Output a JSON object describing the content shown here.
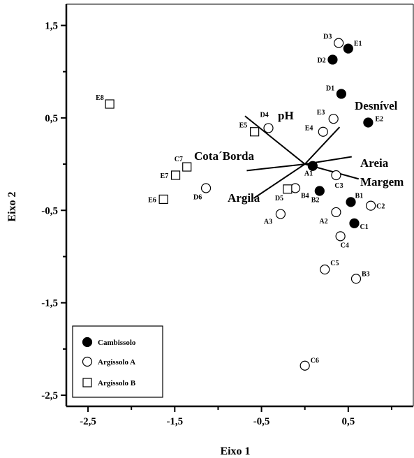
{
  "chart_data": {
    "type": "scatter",
    "title": "",
    "xlabel": "Eixo 1",
    "ylabel": "Eixo 2",
    "xlim": [
      -2.75,
      1.25
    ],
    "ylim": [
      -2.62,
      1.73
    ],
    "xticks": [
      -2.5,
      -1.5,
      -0.5,
      0.5
    ],
    "xtick_labels": [
      "-2,5",
      "-1,5",
      "-0,5",
      "0,5"
    ],
    "yticks": [
      1.5,
      0.5,
      -0.5,
      -1.5,
      -2.5
    ],
    "ytick_labels": [
      "1,5",
      "0,5",
      "-0,5",
      "-1,5",
      "-2,5"
    ],
    "grid": false,
    "legend_position": "bottom-left",
    "series": [
      {
        "name": "Cambissolo",
        "marker": "filled-circle",
        "color": "#000000",
        "points": [
          {
            "label": "E1",
            "x": 0.5,
            "y": 1.25
          },
          {
            "label": "D2",
            "x": 0.32,
            "y": 1.13
          },
          {
            "label": "D1",
            "x": 0.42,
            "y": 0.76
          },
          {
            "label": "E2",
            "x": 0.73,
            "y": 0.45
          },
          {
            "label": "A1",
            "x": 0.09,
            "y": -0.02
          },
          {
            "label": "B2",
            "x": 0.17,
            "y": -0.29
          },
          {
            "label": "B1",
            "x": 0.53,
            "y": -0.41
          },
          {
            "label": "C1",
            "x": 0.57,
            "y": -0.64
          }
        ]
      },
      {
        "name": "Argissolo A",
        "marker": "open-circle",
        "color": "#000000",
        "points": [
          {
            "label": "D3",
            "x": 0.39,
            "y": 1.31
          },
          {
            "label": "E3",
            "x": 0.33,
            "y": 0.49
          },
          {
            "label": "E4",
            "x": 0.21,
            "y": 0.35
          },
          {
            "label": "D4",
            "x": -0.42,
            "y": 0.39
          },
          {
            "label": "C3",
            "x": 0.36,
            "y": -0.12
          },
          {
            "label": "B4",
            "x": -0.11,
            "y": -0.26
          },
          {
            "label": "D6",
            "x": -1.14,
            "y": -0.26
          },
          {
            "label": "A3",
            "x": -0.28,
            "y": -0.54
          },
          {
            "label": "A2",
            "x": 0.36,
            "y": -0.52
          },
          {
            "label": "C2",
            "x": 0.76,
            "y": -0.45
          },
          {
            "label": "C4",
            "x": 0.41,
            "y": -0.78
          },
          {
            "label": "C5",
            "x": 0.23,
            "y": -1.14
          },
          {
            "label": "B3",
            "x": 0.59,
            "y": -1.24
          },
          {
            "label": "C6",
            "x": 0.0,
            "y": -2.18
          }
        ]
      },
      {
        "name": "Argissolo B",
        "marker": "open-square",
        "color": "#000000",
        "points": [
          {
            "label": "E8",
            "x": -2.25,
            "y": 0.65
          },
          {
            "label": "E5",
            "x": -0.58,
            "y": 0.35
          },
          {
            "label": "C7",
            "x": -1.36,
            "y": -0.03
          },
          {
            "label": "E7",
            "x": -1.49,
            "y": -0.12
          },
          {
            "label": "E6",
            "x": -1.63,
            "y": -0.38
          },
          {
            "label": "D5",
            "x": -0.2,
            "y": -0.27
          }
        ]
      }
    ],
    "vectors": [
      {
        "label": "pH",
        "x0": -0.69,
        "y0": 0.52,
        "x1": 0.0,
        "y1": 0.0
      },
      {
        "label": "Desnível",
        "x0": 0.0,
        "y0": 0.0,
        "x1": 0.4,
        "y1": 0.4
      },
      {
        "label": "Cota´Borda",
        "x0": -0.67,
        "y0": -0.07,
        "x1": 0.0,
        "y1": 0.0
      },
      {
        "label": "Areia",
        "x0": 0.0,
        "y0": 0.0,
        "x1": 0.54,
        "y1": 0.08
      },
      {
        "label": "Margem",
        "x0": 0.0,
        "y0": 0.0,
        "x1": 0.62,
        "y1": -0.16
      },
      {
        "label": "Argila",
        "x0": -0.59,
        "y0": -0.37,
        "x1": 0.0,
        "y1": 0.0
      }
    ]
  }
}
